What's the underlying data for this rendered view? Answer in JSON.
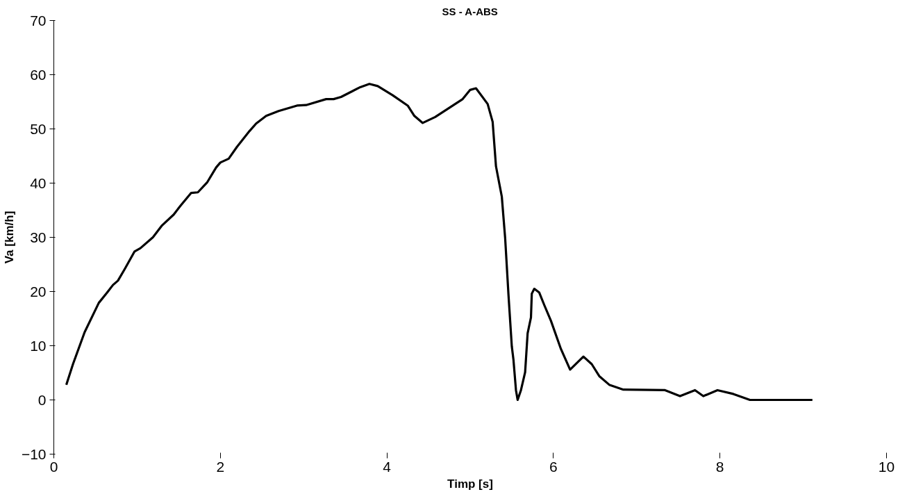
{
  "chart_data": {
    "type": "line",
    "title": "SS - A-ABS",
    "xlabel": "Timp [s]",
    "ylabel": "Va [km/h]",
    "xlim": [
      0,
      10
    ],
    "xticks": [
      0,
      2,
      4,
      6,
      8,
      10
    ],
    "ylim": [
      -10,
      70
    ],
    "yticks": [
      -10,
      0,
      10,
      20,
      30,
      40,
      50,
      60,
      70
    ],
    "grid": false,
    "marker": "none",
    "line_style": "solid",
    "series": [
      {
        "color": "#000000",
        "x": [
          0.15,
          0.23,
          0.37,
          0.54,
          0.64,
          0.71,
          0.77,
          0.85,
          0.97,
          1.04,
          1.19,
          1.3,
          1.44,
          1.52,
          1.65,
          1.73,
          1.84,
          1.95,
          2.0,
          2.1,
          2.2,
          2.35,
          2.43,
          2.55,
          2.7,
          2.92,
          3.03,
          3.27,
          3.36,
          3.45,
          3.68,
          3.79,
          3.89,
          4.07,
          4.25,
          4.33,
          4.43,
          4.58,
          4.91,
          5.0,
          5.07,
          5.21,
          5.27,
          5.31,
          5.38,
          5.42,
          5.46,
          5.5,
          5.52,
          5.55,
          5.57,
          5.61,
          5.66,
          5.69,
          5.73,
          5.74,
          5.77,
          5.83,
          5.89,
          5.97,
          6.09,
          6.2,
          6.36,
          6.46,
          6.55,
          6.67,
          6.84,
          7.34,
          7.52,
          7.7,
          7.8,
          7.97,
          8.16,
          8.36,
          9.11
        ],
        "values": [
          2.8,
          6.6,
          12.5,
          17.9,
          19.8,
          21.2,
          22.0,
          24.1,
          27.4,
          28.0,
          30.0,
          32.2,
          34.2,
          35.8,
          38.2,
          38.3,
          40.1,
          42.9,
          43.8,
          44.5,
          46.7,
          49.6,
          51.0,
          52.4,
          53.3,
          54.3,
          54.4,
          55.5,
          55.5,
          55.9,
          57.7,
          58.3,
          57.9,
          56.2,
          54.3,
          52.4,
          51.1,
          52.2,
          55.5,
          57.2,
          57.5,
          54.6,
          51.3,
          43.1,
          37.5,
          29.9,
          19.4,
          9.9,
          7.4,
          1.8,
          0,
          1.8,
          5.1,
          12.3,
          15.2,
          19.6,
          20.5,
          19.8,
          17.5,
          14.6,
          9.4,
          5.6,
          8.0,
          6.6,
          4.4,
          2.8,
          1.9,
          1.8,
          0.7,
          1.8,
          0.7,
          1.8,
          1.1,
          0,
          0
        ]
      }
    ]
  }
}
